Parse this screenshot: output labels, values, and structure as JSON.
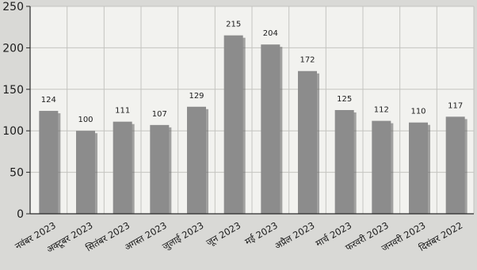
{
  "chart_data": {
    "type": "bar",
    "categories": [
      "नवंबर 2023",
      "अक्टूबर 2023",
      "सितंबर 2023",
      "अगस्त 2023",
      "जुलाई 2023",
      "जून 2023",
      "मई 2023",
      "अप्रैल 2023",
      "मार्च 2023",
      "फरवरी 2023",
      "जनवरी 2023",
      "दिसंबर 2022"
    ],
    "values": [
      124,
      100,
      111,
      107,
      129,
      215,
      204,
      172,
      125,
      112,
      110,
      117
    ],
    "ylim": [
      0,
      250
    ],
    "yticks": [
      0,
      50,
      100,
      150,
      200,
      250
    ],
    "grid": true,
    "colors": {
      "bar": "#8c8c8c",
      "bar_shadow": "#5f5f5f",
      "plot_background": "#f2f2ef",
      "grid": "#c4c4c0",
      "axis": "#2a2a2a"
    }
  }
}
